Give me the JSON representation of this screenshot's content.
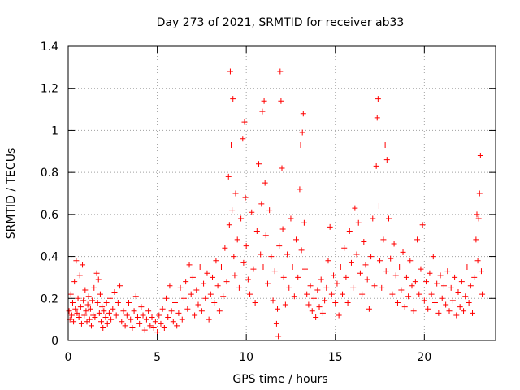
{
  "chart_data": {
    "type": "scatter",
    "title": "Day 273 of 2021, SRMTID for receiver ab33",
    "xlabel": "GPS time / hours",
    "ylabel": "SRMTID / TECUs",
    "xlim": [
      0,
      24
    ],
    "ylim": [
      0,
      1.4
    ],
    "xticks": [
      0,
      5,
      10,
      15,
      20
    ],
    "xtick_labels": [
      "0",
      "5",
      "10",
      "15",
      "20"
    ],
    "yticks": [
      0,
      0.2,
      0.4,
      0.6,
      0.8,
      1.0,
      1.2,
      1.4
    ],
    "ytick_labels": [
      "0",
      "0.2",
      "0.4",
      "0.6",
      "0.8",
      "1",
      "1.2",
      "1.4"
    ],
    "grid": true,
    "marker": "plus",
    "marker_color": "#ff0000",
    "series": [
      {
        "name": "SRMTID",
        "points": [
          [
            0.05,
            0.14
          ],
          [
            0.1,
            0.1
          ],
          [
            0.15,
            0.22
          ],
          [
            0.2,
            0.12
          ],
          [
            0.25,
            0.18
          ],
          [
            0.3,
            0.09
          ],
          [
            0.35,
            0.28
          ],
          [
            0.4,
            0.15
          ],
          [
            0.45,
            0.38
          ],
          [
            0.5,
            0.13
          ],
          [
            0.55,
            0.2
          ],
          [
            0.6,
            0.11
          ],
          [
            0.65,
            0.31
          ],
          [
            0.7,
            0.16
          ],
          [
            0.75,
            0.08
          ],
          [
            0.8,
            0.36
          ],
          [
            0.85,
            0.19
          ],
          [
            0.9,
            0.12
          ],
          [
            0.95,
            0.24
          ],
          [
            1.0,
            0.14
          ],
          [
            1.05,
            0.09
          ],
          [
            1.1,
            0.17
          ],
          [
            1.15,
            0.21
          ],
          [
            1.2,
            0.1
          ],
          [
            1.25,
            0.15
          ],
          [
            1.3,
            0.07
          ],
          [
            1.35,
            0.19
          ],
          [
            1.4,
            0.12
          ],
          [
            1.45,
            0.25
          ],
          [
            1.5,
            0.11
          ],
          [
            1.6,
            0.32
          ],
          [
            1.65,
            0.18
          ],
          [
            1.7,
            0.29
          ],
          [
            1.75,
            0.13
          ],
          [
            1.8,
            0.22
          ],
          [
            1.85,
            0.09
          ],
          [
            1.9,
            0.16
          ],
          [
            1.95,
            0.06
          ],
          [
            2.0,
            0.14
          ],
          [
            2.1,
            0.11
          ],
          [
            2.15,
            0.18
          ],
          [
            2.2,
            0.08
          ],
          [
            2.3,
            0.13
          ],
          [
            2.35,
            0.2
          ],
          [
            2.4,
            0.1
          ],
          [
            2.5,
            0.15
          ],
          [
            2.6,
            0.23
          ],
          [
            2.7,
            0.12
          ],
          [
            2.8,
            0.18
          ],
          [
            2.9,
            0.26
          ],
          [
            3.0,
            0.09
          ],
          [
            3.1,
            0.14
          ],
          [
            3.2,
            0.07
          ],
          [
            3.3,
            0.12
          ],
          [
            3.4,
            0.18
          ],
          [
            3.5,
            0.1
          ],
          [
            3.6,
            0.06
          ],
          [
            3.7,
            0.14
          ],
          [
            3.8,
            0.21
          ],
          [
            3.9,
            0.11
          ],
          [
            4.0,
            0.08
          ],
          [
            4.1,
            0.16
          ],
          [
            4.2,
            0.12
          ],
          [
            4.3,
            0.05
          ],
          [
            4.4,
            0.1
          ],
          [
            4.5,
            0.14
          ],
          [
            4.6,
            0.07
          ],
          [
            4.7,
            0.11
          ],
          [
            4.8,
            0.06
          ],
          [
            4.9,
            0.09
          ],
          [
            5.0,
            0.04
          ],
          [
            5.1,
            0.12
          ],
          [
            5.2,
            0.08
          ],
          [
            5.3,
            0.15
          ],
          [
            5.4,
            0.06
          ],
          [
            5.5,
            0.2
          ],
          [
            5.6,
            0.11
          ],
          [
            5.7,
            0.26
          ],
          [
            5.8,
            0.14
          ],
          [
            5.9,
            0.09
          ],
          [
            6.0,
            0.18
          ],
          [
            6.1,
            0.07
          ],
          [
            6.2,
            0.13
          ],
          [
            6.3,
            0.25
          ],
          [
            6.4,
            0.1
          ],
          [
            6.5,
            0.2
          ],
          [
            6.6,
            0.28
          ],
          [
            6.7,
            0.15
          ],
          [
            6.8,
            0.36
          ],
          [
            6.9,
            0.22
          ],
          [
            7.0,
            0.3
          ],
          [
            7.1,
            0.12
          ],
          [
            7.2,
            0.24
          ],
          [
            7.3,
            0.17
          ],
          [
            7.4,
            0.35
          ],
          [
            7.5,
            0.14
          ],
          [
            7.6,
            0.27
          ],
          [
            7.7,
            0.2
          ],
          [
            7.8,
            0.32
          ],
          [
            7.9,
            0.1
          ],
          [
            8.0,
            0.22
          ],
          [
            8.1,
            0.3
          ],
          [
            8.2,
            0.18
          ],
          [
            8.3,
            0.38
          ],
          [
            8.4,
            0.26
          ],
          [
            8.5,
            0.14
          ],
          [
            8.6,
            0.35
          ],
          [
            8.7,
            0.21
          ],
          [
            8.8,
            0.44
          ],
          [
            8.9,
            0.28
          ],
          [
            9.0,
            0.78
          ],
          [
            9.05,
            0.55
          ],
          [
            9.1,
            1.28
          ],
          [
            9.15,
            0.93
          ],
          [
            9.2,
            0.62
          ],
          [
            9.25,
            1.15
          ],
          [
            9.3,
            0.4
          ],
          [
            9.35,
            0.31
          ],
          [
            9.4,
            0.7
          ],
          [
            9.5,
            0.48
          ],
          [
            9.6,
            0.25
          ],
          [
            9.7,
            0.58
          ],
          [
            9.8,
            0.96
          ],
          [
            9.85,
            0.37
          ],
          [
            9.9,
            1.04
          ],
          [
            9.95,
            0.68
          ],
          [
            10.0,
            0.45
          ],
          [
            10.1,
            0.29
          ],
          [
            10.2,
            0.22
          ],
          [
            10.3,
            0.61
          ],
          [
            10.4,
            0.34
          ],
          [
            10.5,
            0.18
          ],
          [
            10.6,
            0.52
          ],
          [
            10.7,
            0.84
          ],
          [
            10.8,
            0.41
          ],
          [
            10.85,
            0.65
          ],
          [
            10.9,
            1.09
          ],
          [
            10.95,
            0.35
          ],
          [
            11.0,
            1.14
          ],
          [
            11.05,
            0.75
          ],
          [
            11.1,
            0.5
          ],
          [
            11.2,
            0.27
          ],
          [
            11.3,
            0.62
          ],
          [
            11.4,
            0.4
          ],
          [
            11.5,
            0.19
          ],
          [
            11.6,
            0.33
          ],
          [
            11.7,
            0.08
          ],
          [
            11.75,
            0.15
          ],
          [
            11.8,
            0.02
          ],
          [
            11.85,
            0.45
          ],
          [
            11.9,
            1.28
          ],
          [
            11.95,
            1.14
          ],
          [
            12.0,
            0.82
          ],
          [
            12.05,
            0.53
          ],
          [
            12.1,
            0.3
          ],
          [
            12.2,
            0.17
          ],
          [
            12.3,
            0.41
          ],
          [
            12.4,
            0.25
          ],
          [
            12.5,
            0.58
          ],
          [
            12.6,
            0.35
          ],
          [
            12.7,
            0.21
          ],
          [
            12.8,
            0.48
          ],
          [
            12.9,
            0.3
          ],
          [
            13.0,
            0.72
          ],
          [
            13.05,
            0.93
          ],
          [
            13.1,
            0.43
          ],
          [
            13.15,
            0.99
          ],
          [
            13.2,
            1.08
          ],
          [
            13.25,
            0.56
          ],
          [
            13.3,
            0.34
          ],
          [
            13.4,
            0.22
          ],
          [
            13.5,
            0.17
          ],
          [
            13.6,
            0.26
          ],
          [
            13.7,
            0.14
          ],
          [
            13.8,
            0.2
          ],
          [
            13.9,
            0.11
          ],
          [
            14.0,
            0.24
          ],
          [
            14.1,
            0.16
          ],
          [
            14.2,
            0.29
          ],
          [
            14.3,
            0.13
          ],
          [
            14.4,
            0.19
          ],
          [
            14.5,
            0.25
          ],
          [
            14.6,
            0.38
          ],
          [
            14.7,
            0.54
          ],
          [
            14.8,
            0.22
          ],
          [
            14.9,
            0.31
          ],
          [
            15.0,
            0.18
          ],
          [
            15.1,
            0.27
          ],
          [
            15.2,
            0.12
          ],
          [
            15.3,
            0.35
          ],
          [
            15.4,
            0.22
          ],
          [
            15.5,
            0.44
          ],
          [
            15.6,
            0.3
          ],
          [
            15.7,
            0.18
          ],
          [
            15.8,
            0.52
          ],
          [
            15.9,
            0.37
          ],
          [
            16.0,
            0.25
          ],
          [
            16.1,
            0.63
          ],
          [
            16.2,
            0.41
          ],
          [
            16.3,
            0.56
          ],
          [
            16.4,
            0.32
          ],
          [
            16.5,
            0.22
          ],
          [
            16.6,
            0.47
          ],
          [
            16.7,
            0.36
          ],
          [
            16.8,
            0.29
          ],
          [
            16.9,
            0.15
          ],
          [
            17.0,
            0.4
          ],
          [
            17.1,
            0.58
          ],
          [
            17.2,
            0.26
          ],
          [
            17.3,
            0.83
          ],
          [
            17.35,
            1.06
          ],
          [
            17.4,
            1.15
          ],
          [
            17.45,
            0.64
          ],
          [
            17.5,
            0.38
          ],
          [
            17.6,
            0.25
          ],
          [
            17.7,
            0.48
          ],
          [
            17.8,
            0.93
          ],
          [
            17.85,
            0.33
          ],
          [
            17.9,
            0.86
          ],
          [
            18.0,
            0.58
          ],
          [
            18.1,
            0.39
          ],
          [
            18.2,
            0.22
          ],
          [
            18.3,
            0.46
          ],
          [
            18.4,
            0.31
          ],
          [
            18.5,
            0.18
          ],
          [
            18.6,
            0.35
          ],
          [
            18.7,
            0.24
          ],
          [
            18.8,
            0.42
          ],
          [
            18.9,
            0.16
          ],
          [
            19.0,
            0.3
          ],
          [
            19.1,
            0.21
          ],
          [
            19.2,
            0.38
          ],
          [
            19.3,
            0.26
          ],
          [
            19.4,
            0.14
          ],
          [
            19.5,
            0.28
          ],
          [
            19.6,
            0.48
          ],
          [
            19.7,
            0.22
          ],
          [
            19.8,
            0.34
          ],
          [
            19.9,
            0.55
          ],
          [
            20.0,
            0.19
          ],
          [
            20.1,
            0.28
          ],
          [
            20.2,
            0.15
          ],
          [
            20.3,
            0.32
          ],
          [
            20.4,
            0.22
          ],
          [
            20.5,
            0.4
          ],
          [
            20.6,
            0.18
          ],
          [
            20.7,
            0.27
          ],
          [
            20.8,
            0.13
          ],
          [
            20.9,
            0.31
          ],
          [
            21.0,
            0.2
          ],
          [
            21.1,
            0.26
          ],
          [
            21.2,
            0.17
          ],
          [
            21.3,
            0.33
          ],
          [
            21.4,
            0.14
          ],
          [
            21.5,
            0.25
          ],
          [
            21.6,
            0.19
          ],
          [
            21.7,
            0.3
          ],
          [
            21.8,
            0.12
          ],
          [
            21.9,
            0.23
          ],
          [
            22.0,
            0.16
          ],
          [
            22.1,
            0.28
          ],
          [
            22.2,
            0.14
          ],
          [
            22.3,
            0.21
          ],
          [
            22.4,
            0.35
          ],
          [
            22.5,
            0.18
          ],
          [
            22.6,
            0.26
          ],
          [
            22.7,
            0.13
          ],
          [
            22.8,
            0.3
          ],
          [
            22.9,
            0.48
          ],
          [
            22.95,
            0.6
          ],
          [
            23.0,
            0.38
          ],
          [
            23.05,
            0.58
          ],
          [
            23.1,
            0.7
          ],
          [
            23.15,
            0.88
          ],
          [
            23.2,
            0.33
          ],
          [
            23.25,
            0.22
          ]
        ]
      }
    ]
  }
}
